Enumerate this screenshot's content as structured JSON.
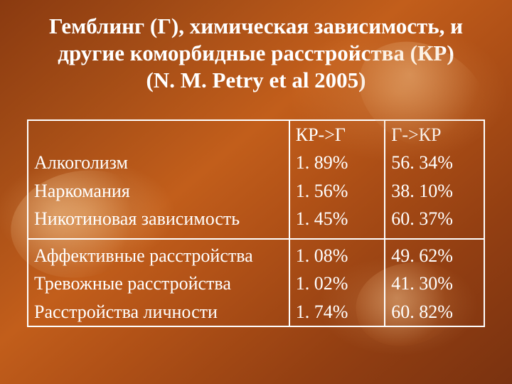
{
  "title_lines": [
    "Гемблинг (Г), химическая зависимость, и",
    "другие коморбидные расстройства (КР)",
    "(N. M. Petry et al 2005)"
  ],
  "table": {
    "type": "table",
    "text_color": "#ffffff",
    "border_color": "#ffffff",
    "fontsize": 26,
    "columns": [
      "",
      "КР->Г",
      "Г->КР"
    ],
    "group1": [
      {
        "label": "Алкоголизм",
        "kr_g": "1. 89%",
        "g_kr": "56. 34%"
      },
      {
        "label": "Наркомания",
        "kr_g": "1. 56%",
        "g_kr": "38. 10%"
      },
      {
        "label": "Никотиновая зависимость",
        "kr_g": "1. 45%",
        "g_kr": "60. 37%"
      }
    ],
    "group2": [
      {
        "label": "Аффективные расстройства",
        "kr_g": "1. 08%",
        "g_kr": "49. 62%"
      },
      {
        "label": "Тревожные расстройства",
        "kr_g": "1. 02%",
        "g_kr": "41. 30%"
      },
      {
        "label": "Расстройства личности",
        "kr_g": "1. 74%",
        "g_kr": "60. 82%"
      }
    ]
  },
  "background": {
    "dominant_colors": [
      "#8a3a10",
      "#a34c16",
      "#c25e1b",
      "#b25217",
      "#933f12",
      "#7a3210"
    ]
  }
}
